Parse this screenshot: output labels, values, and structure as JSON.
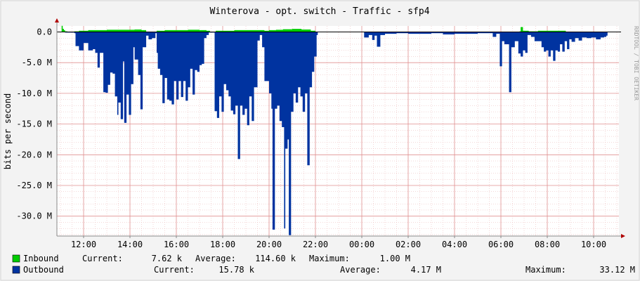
{
  "title": "Winterova - opt. switch - Traffic - sfp4",
  "ylabel": "bits per second",
  "watermark": "RRDTOOL / TOBI OETIKER",
  "colors": {
    "background": "#F3F3F3",
    "plot_background": "#FFFFFF",
    "grid": "#E8B0B0",
    "inbound": "#00CC00",
    "outbound": "#0033A0",
    "axis": "#B00000"
  },
  "legend": {
    "inbound": {
      "label": "Inbound",
      "current_label": "Current:",
      "current_value": "7.62 k",
      "average_label": "Average:",
      "average_value": "114.60 k",
      "maximum_label": "Maximum:",
      "maximum_value": "1.00 M"
    },
    "outbound": {
      "label": "Outbound",
      "current_label": "Current:",
      "current_value": "15.78 k",
      "average_label": "Average:",
      "average_value": "4.17 M",
      "maximum_label": "Maximum:",
      "maximum_value": "33.12 M"
    }
  },
  "chart_data": {
    "type": "area",
    "title": "Winterova - opt. switch - Traffic - sfp4",
    "ylabel": "bits per second",
    "x_unit": "hours (11:00 = 0)",
    "xlim": [
      0,
      24.5
    ],
    "ylim": [
      -33.12,
      0.2
    ],
    "x_ticks": [
      {
        "x": 1,
        "label": "12:00"
      },
      {
        "x": 3,
        "label": "14:00"
      },
      {
        "x": 5,
        "label": "16:00"
      },
      {
        "x": 7,
        "label": "18:00"
      },
      {
        "x": 9,
        "label": "20:00"
      },
      {
        "x": 11,
        "label": "22:00"
      },
      {
        "x": 13,
        "label": "00:00"
      },
      {
        "x": 15,
        "label": "02:00"
      },
      {
        "x": 17,
        "label": "04:00"
      },
      {
        "x": 19,
        "label": "06:00"
      },
      {
        "x": 21,
        "label": "08:00"
      },
      {
        "x": 23,
        "label": "10:00"
      }
    ],
    "y_ticks": [
      {
        "y": 0,
        "label": "0.0"
      },
      {
        "y": -5,
        "label": "-5.0 M"
      },
      {
        "y": -10,
        "label": "-10.0 M"
      },
      {
        "y": -15,
        "label": "-15.0 M"
      },
      {
        "y": -20,
        "label": "-20.0 M"
      },
      {
        "y": -25,
        "label": "-25.0 M"
      },
      {
        "y": -30,
        "label": "-30.0 M"
      }
    ],
    "grid": true,
    "series": [
      {
        "name": "Inbound",
        "color": "#00CC00",
        "points": [
          [
            0.0,
            0.0
          ],
          [
            0.05,
            1.0
          ],
          [
            0.1,
            0.5
          ],
          [
            0.15,
            0.3
          ],
          [
            0.2,
            0.1
          ],
          [
            0.3,
            0.0
          ],
          [
            0.6,
            0.1
          ],
          [
            0.8,
            0.2
          ],
          [
            1.2,
            0.3
          ],
          [
            2.0,
            0.35
          ],
          [
            2.8,
            0.35
          ],
          [
            3.2,
            0.4
          ],
          [
            3.5,
            0.3
          ],
          [
            3.7,
            0.0
          ],
          [
            4.15,
            0.2
          ],
          [
            4.5,
            0.3
          ],
          [
            5.0,
            0.3
          ],
          [
            5.5,
            0.35
          ],
          [
            6.0,
            0.3
          ],
          [
            6.3,
            0.2
          ],
          [
            6.45,
            0.0
          ],
          [
            6.7,
            0.2
          ],
          [
            7.5,
            0.3
          ],
          [
            8.5,
            0.3
          ],
          [
            8.8,
            0.2
          ],
          [
            9.0,
            0.3
          ],
          [
            9.3,
            0.35
          ],
          [
            9.6,
            0.45
          ],
          [
            10.0,
            0.5
          ],
          [
            10.4,
            0.4
          ],
          [
            10.8,
            0.2
          ],
          [
            11.0,
            0.0
          ],
          [
            12.9,
            0.0
          ],
          [
            13.0,
            0.05
          ],
          [
            13.5,
            0.0
          ],
          [
            19.0,
            0.05
          ],
          [
            19.4,
            0.0
          ],
          [
            19.8,
            0.1
          ],
          [
            19.85,
            0.8
          ],
          [
            19.95,
            0.2
          ],
          [
            20.2,
            0.1
          ],
          [
            20.6,
            0.2
          ],
          [
            21.0,
            0.2
          ],
          [
            21.8,
            0.0
          ],
          [
            22.5,
            0.0
          ],
          [
            23.6,
            0.0
          ]
        ]
      },
      {
        "name": "Outbound",
        "color": "#0033A0",
        "points": [
          [
            0.0,
            0.0
          ],
          [
            0.2,
            -0.1
          ],
          [
            0.6,
            -0.2
          ],
          [
            0.65,
            -2.3
          ],
          [
            0.8,
            -3.0
          ],
          [
            1.0,
            -1.8
          ],
          [
            1.2,
            -3.0
          ],
          [
            1.4,
            -2.8
          ],
          [
            1.5,
            -3.4
          ],
          [
            1.6,
            -5.8
          ],
          [
            1.7,
            -3.4
          ],
          [
            1.85,
            -9.8
          ],
          [
            1.95,
            -9.9
          ],
          [
            2.05,
            -8.6
          ],
          [
            2.15,
            -6.6
          ],
          [
            2.25,
            -6.8
          ],
          [
            2.35,
            -10.5
          ],
          [
            2.45,
            -13.5
          ],
          [
            2.5,
            -11.5
          ],
          [
            2.6,
            -14.2
          ],
          [
            2.7,
            -4.8
          ],
          [
            2.75,
            -14.8
          ],
          [
            2.85,
            -10.2
          ],
          [
            2.95,
            -13.5
          ],
          [
            3.05,
            -8.5
          ],
          [
            3.15,
            -2.5
          ],
          [
            3.2,
            -4.5
          ],
          [
            3.35,
            -7.0
          ],
          [
            3.45,
            -12.6
          ],
          [
            3.55,
            -2.5
          ],
          [
            3.7,
            -0.6
          ],
          [
            3.8,
            -1.2
          ],
          [
            3.95,
            -1.0
          ],
          [
            4.1,
            -0.2
          ],
          [
            4.15,
            -3.4
          ],
          [
            4.2,
            -6.0
          ],
          [
            4.3,
            -7.0
          ],
          [
            4.4,
            -11.6
          ],
          [
            4.5,
            -7.5
          ],
          [
            4.6,
            -11.0
          ],
          [
            4.7,
            -11.2
          ],
          [
            4.8,
            -11.8
          ],
          [
            4.9,
            -8.0
          ],
          [
            5.0,
            -11.0
          ],
          [
            5.1,
            -8.0
          ],
          [
            5.2,
            -10.6
          ],
          [
            5.3,
            -8.0
          ],
          [
            5.4,
            -11.2
          ],
          [
            5.5,
            -9.0
          ],
          [
            5.6,
            -6.0
          ],
          [
            5.7,
            -10.2
          ],
          [
            5.8,
            -6.2
          ],
          [
            5.9,
            -6.5
          ],
          [
            6.0,
            -5.4
          ],
          [
            6.1,
            -5.2
          ],
          [
            6.2,
            -1.0
          ],
          [
            6.3,
            -0.5
          ],
          [
            6.4,
            -0.1
          ],
          [
            6.6,
            -0.1
          ],
          [
            6.65,
            -12.9
          ],
          [
            6.75,
            -14.0
          ],
          [
            6.85,
            -10.5
          ],
          [
            6.95,
            -13.0
          ],
          [
            7.05,
            -8.5
          ],
          [
            7.15,
            -9.5
          ],
          [
            7.25,
            -10.5
          ],
          [
            7.35,
            -12.8
          ],
          [
            7.45,
            -13.4
          ],
          [
            7.55,
            -12.0
          ],
          [
            7.65,
            -20.7
          ],
          [
            7.75,
            -12.0
          ],
          [
            7.85,
            -13.5
          ],
          [
            7.95,
            -12.5
          ],
          [
            8.05,
            -15.2
          ],
          [
            8.15,
            -10.5
          ],
          [
            8.25,
            -14.5
          ],
          [
            8.35,
            -9.0
          ],
          [
            8.5,
            -1.4
          ],
          [
            8.6,
            -0.5
          ],
          [
            8.7,
            -2.5
          ],
          [
            8.8,
            -8.0
          ],
          [
            9.0,
            -10.0
          ],
          [
            9.1,
            -12.5
          ],
          [
            9.15,
            -32.2
          ],
          [
            9.25,
            -12.5
          ],
          [
            9.35,
            -12.0
          ],
          [
            9.45,
            -14.5
          ],
          [
            9.55,
            -15.5
          ],
          [
            9.65,
            -32.0
          ],
          [
            9.7,
            -19.0
          ],
          [
            9.8,
            -17.5
          ],
          [
            9.85,
            -33.1
          ],
          [
            9.95,
            -13.0
          ],
          [
            10.05,
            -10.0
          ],
          [
            10.15,
            -11.5
          ],
          [
            10.25,
            -9.0
          ],
          [
            10.35,
            -10.5
          ],
          [
            10.45,
            -13.0
          ],
          [
            10.55,
            -10.0
          ],
          [
            10.65,
            -21.7
          ],
          [
            10.75,
            -9.0
          ],
          [
            10.85,
            -6.5
          ],
          [
            10.95,
            -4.0
          ],
          [
            11.05,
            -0.5
          ],
          [
            11.1,
            0.0
          ],
          [
            13.05,
            0.0
          ],
          [
            13.1,
            -0.9
          ],
          [
            13.3,
            -0.5
          ],
          [
            13.45,
            -1.3
          ],
          [
            13.55,
            -0.6
          ],
          [
            13.65,
            -2.4
          ],
          [
            13.8,
            -0.5
          ],
          [
            14.0,
            -0.3
          ],
          [
            14.5,
            -0.2
          ],
          [
            15.0,
            -0.3
          ],
          [
            15.5,
            -0.3
          ],
          [
            16.0,
            -0.2
          ],
          [
            16.5,
            -0.4
          ],
          [
            17.0,
            -0.3
          ],
          [
            17.5,
            -0.3
          ],
          [
            18.0,
            -0.2
          ],
          [
            18.5,
            -0.2
          ],
          [
            18.65,
            -0.8
          ],
          [
            18.8,
            -0.3
          ],
          [
            18.95,
            -5.6
          ],
          [
            19.05,
            -1.5
          ],
          [
            19.15,
            -2.0
          ],
          [
            19.35,
            -9.8
          ],
          [
            19.45,
            -2.5
          ],
          [
            19.6,
            -1.5
          ],
          [
            19.75,
            -3.5
          ],
          [
            19.85,
            -4.0
          ],
          [
            19.95,
            -3.0
          ],
          [
            20.05,
            -3.4
          ],
          [
            20.15,
            -0.5
          ],
          [
            20.3,
            -0.8
          ],
          [
            20.45,
            -1.5
          ],
          [
            20.6,
            -1.5
          ],
          [
            20.75,
            -2.5
          ],
          [
            20.85,
            -3.2
          ],
          [
            20.95,
            -3.0
          ],
          [
            21.05,
            -4.0
          ],
          [
            21.15,
            -3.0
          ],
          [
            21.25,
            -4.7
          ],
          [
            21.35,
            -3.0
          ],
          [
            21.45,
            -3.2
          ],
          [
            21.55,
            -2.0
          ],
          [
            21.65,
            -3.2
          ],
          [
            21.75,
            -1.5
          ],
          [
            21.85,
            -2.8
          ],
          [
            21.95,
            -1.2
          ],
          [
            22.05,
            -1.6
          ],
          [
            22.2,
            -1.0
          ],
          [
            22.35,
            -1.4
          ],
          [
            22.5,
            -0.9
          ],
          [
            22.7,
            -1.0
          ],
          [
            22.9,
            -0.9
          ],
          [
            23.1,
            -1.2
          ],
          [
            23.3,
            -0.9
          ],
          [
            23.45,
            -0.8
          ],
          [
            23.55,
            -0.6
          ],
          [
            23.6,
            0.0
          ]
        ]
      }
    ]
  }
}
